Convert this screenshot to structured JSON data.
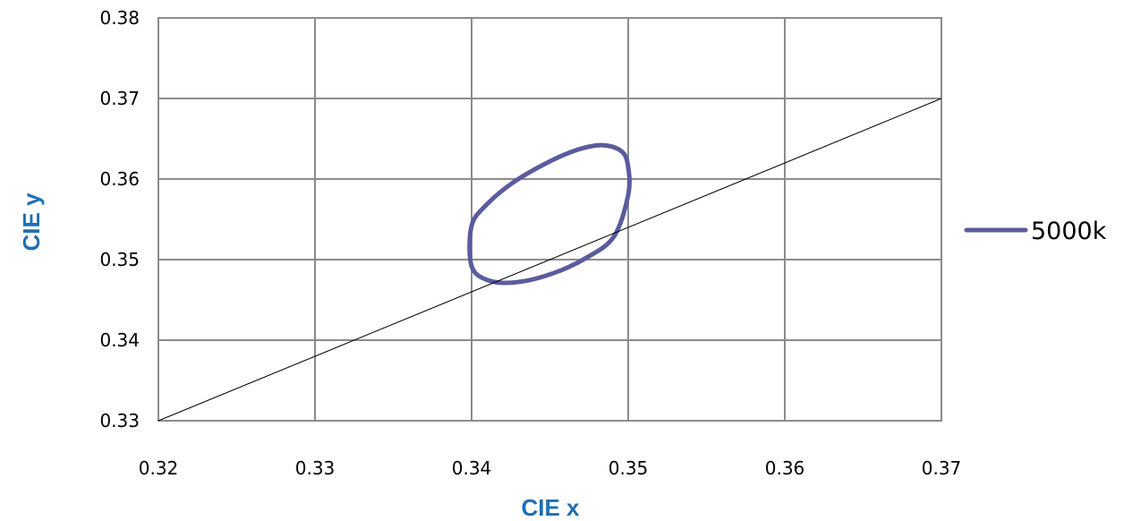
{
  "chart_data": {
    "type": "scatter",
    "title": "",
    "xlabel": "CIE x",
    "ylabel": "CIE y",
    "xlim": [
      0.32,
      0.37
    ],
    "ylim": [
      0.33,
      0.38
    ],
    "x_ticks": [
      "0.32",
      "0.33",
      "0.34",
      "0.35",
      "0.36",
      "0.37"
    ],
    "y_ticks": [
      "0.33",
      "0.34",
      "0.35",
      "0.36",
      "0.37",
      "0.38"
    ],
    "grid": true,
    "legend_position": "right",
    "series": [
      {
        "name": "5000k",
        "kind": "ellipse",
        "color": "#5b5b9e",
        "x": [
          0.35,
          0.3496,
          0.3484,
          0.3467,
          0.3447,
          0.3426,
          0.341,
          0.34,
          0.34,
          0.3411,
          0.3429,
          0.3452,
          0.3474,
          0.3491,
          0.35
        ],
        "y": [
          0.3615,
          0.3634,
          0.3642,
          0.3636,
          0.3619,
          0.3595,
          0.3569,
          0.3542,
          0.3492,
          0.3474,
          0.3472,
          0.3483,
          0.3503,
          0.3529,
          0.358
        ]
      },
      {
        "name": "",
        "kind": "line",
        "color": "#000000",
        "x": [
          0.32,
          0.37
        ],
        "y": [
          0.33,
          0.37
        ]
      }
    ]
  }
}
